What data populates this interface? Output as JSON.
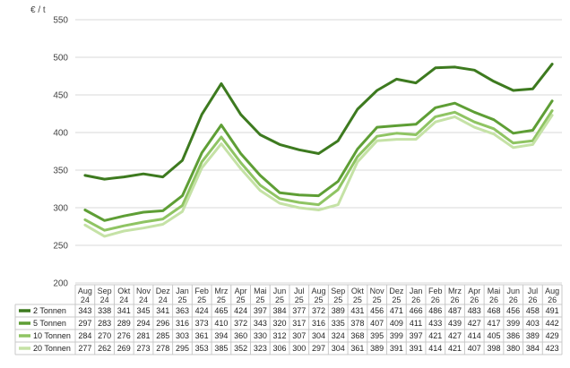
{
  "chart_data": {
    "type": "line",
    "ylabel": "€ / t",
    "ylim": [
      200,
      550
    ],
    "yticks": [
      200,
      250,
      300,
      350,
      400,
      450,
      500,
      550
    ],
    "grid": true,
    "legend": "data-table-below",
    "categories": [
      [
        "Aug",
        "24"
      ],
      [
        "Sep",
        "24"
      ],
      [
        "Okt",
        "24"
      ],
      [
        "Nov",
        "24"
      ],
      [
        "Dez",
        "24"
      ],
      [
        "Jan",
        "25"
      ],
      [
        "Feb",
        "25"
      ],
      [
        "Mrz",
        "25"
      ],
      [
        "Apr",
        "25"
      ],
      [
        "Mai",
        "25"
      ],
      [
        "Jun",
        "25"
      ],
      [
        "Jul",
        "25"
      ],
      [
        "Aug",
        "25"
      ],
      [
        "Sep",
        "25"
      ],
      [
        "Okt",
        "25"
      ],
      [
        "Nov",
        "25"
      ],
      [
        "Dez",
        "25"
      ],
      [
        "Jan",
        "26"
      ],
      [
        "Feb",
        "26"
      ],
      [
        "Mrz",
        "26"
      ],
      [
        "Apr",
        "26"
      ],
      [
        "Mai",
        "26"
      ],
      [
        "Jun",
        "26"
      ],
      [
        "Jul",
        "26"
      ],
      [
        "Aug",
        "26"
      ]
    ],
    "series": [
      {
        "name": "2 Tonnen",
        "color": "#3d7a1f",
        "values": [
          343,
          338,
          341,
          345,
          341,
          363,
          424,
          465,
          424,
          397,
          384,
          377,
          372,
          389,
          431,
          456,
          471,
          466,
          486,
          487,
          483,
          468,
          456,
          458,
          491
        ]
      },
      {
        "name": "5 Tonnen",
        "color": "#5e9e35",
        "values": [
          297,
          283,
          289,
          294,
          296,
          316,
          373,
          410,
          372,
          343,
          320,
          317,
          316,
          335,
          378,
          407,
          409,
          411,
          433,
          439,
          427,
          417,
          399,
          403,
          442
        ]
      },
      {
        "name": "10 Tonnen",
        "color": "#8fc463",
        "values": [
          284,
          270,
          276,
          281,
          285,
          303,
          361,
          394,
          360,
          330,
          312,
          307,
          304,
          324,
          368,
          395,
          399,
          397,
          421,
          427,
          414,
          405,
          386,
          389,
          429
        ]
      },
      {
        "name": "20 Tonnen",
        "color": "#c5e2a6",
        "values": [
          277,
          262,
          269,
          273,
          278,
          295,
          353,
          385,
          352,
          323,
          306,
          300,
          297,
          304,
          361,
          389,
          391,
          391,
          414,
          421,
          407,
          398,
          380,
          384,
          423
        ]
      }
    ]
  }
}
